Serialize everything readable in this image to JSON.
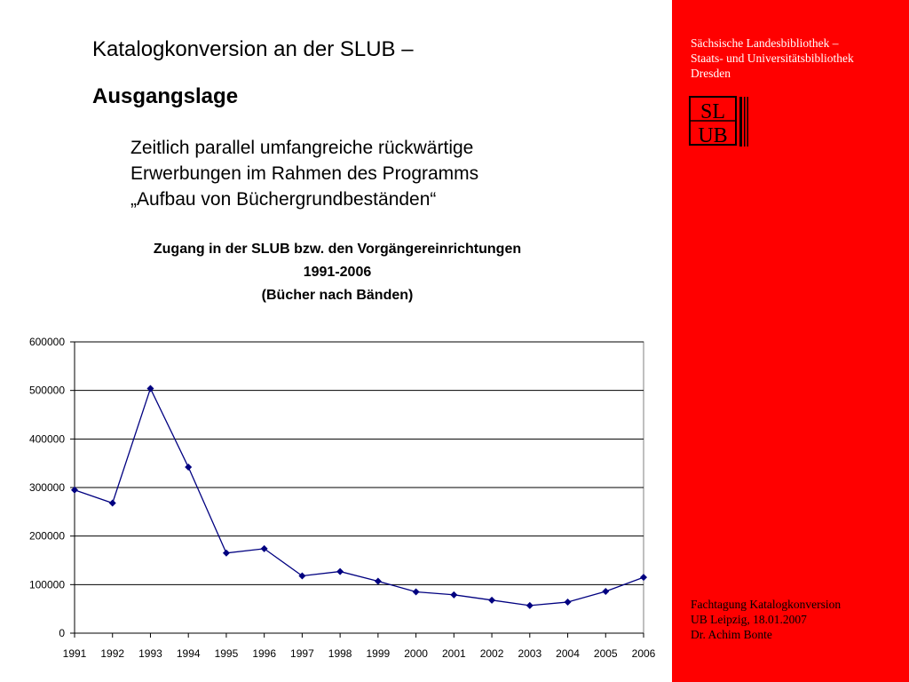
{
  "slide": {
    "title_line1": "Katalogkonversion an der SLUB –",
    "title_line2": "Ausgangslage",
    "bullet_lines": [
      "Zeitlich parallel umfangreiche rückwärtige",
      "Erwerbungen im Rahmen des Programms",
      "„Aufbau von Büchergrundbeständen“"
    ]
  },
  "sidebar": {
    "institution_lines": [
      "Sächsische Landesbibliothek –",
      "Staats- und Universitätsbibliothek",
      "Dresden"
    ],
    "logo_text_top": "SL",
    "logo_text_bottom": "UB",
    "footer_lines": [
      "Fachtagung Katalogkonversion",
      "UB Leipzig, 18.01.2007",
      "Dr. Achim Bonte"
    ],
    "background_color": "#ff0000"
  },
  "chart_data": {
    "type": "line",
    "title_lines": [
      "Zugang in der SLUB bzw. den Vorgängereinrichtungen",
      "1991-2006",
      "(Bücher nach Bänden)"
    ],
    "categories": [
      "1991",
      "1992",
      "1993",
      "1994",
      "1995",
      "1996",
      "1997",
      "1998",
      "1999",
      "2000",
      "2001",
      "2002",
      "2003",
      "2004",
      "2005",
      "2006"
    ],
    "series": [
      {
        "name": "Zugang",
        "color": "#000080",
        "values": [
          295000,
          268000,
          504000,
          342000,
          165000,
          174000,
          118000,
          127000,
          107000,
          85000,
          79000,
          68000,
          57000,
          64000,
          86000,
          115000
        ]
      }
    ],
    "ylim": [
      0,
      600000
    ],
    "yticks": [
      0,
      100000,
      200000,
      300000,
      400000,
      500000,
      600000
    ],
    "ytick_labels": [
      "0",
      "100000",
      "200000",
      "300000",
      "400000",
      "500000",
      "600000"
    ],
    "grid": true,
    "xlabel": "",
    "ylabel": ""
  }
}
